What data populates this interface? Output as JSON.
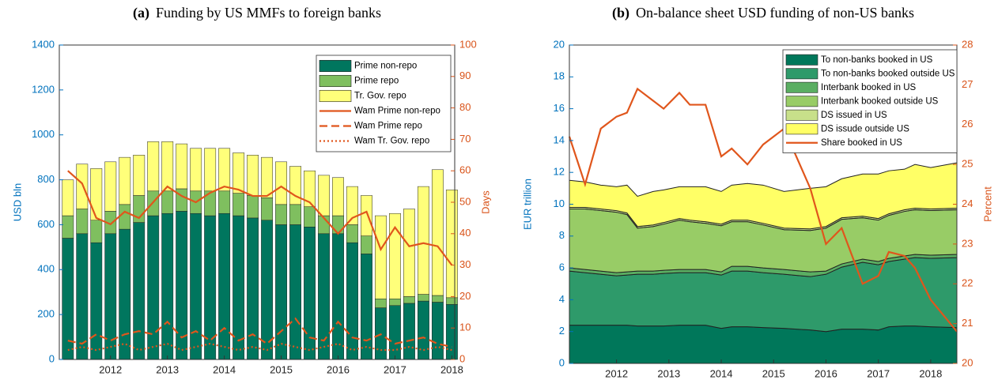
{
  "chart_data": [
    {
      "type": "bar",
      "panel": "(a)",
      "title": "Funding by US MMFs to foreign banks",
      "y_label": "USD bln",
      "y2_label": "Days",
      "x": [
        2011.25,
        2011.5,
        2011.75,
        2012.0,
        2012.25,
        2012.5,
        2012.75,
        2013.0,
        2013.25,
        2013.5,
        2013.75,
        2014.0,
        2014.25,
        2014.5,
        2014.75,
        2015.0,
        2015.25,
        2015.5,
        2015.75,
        2016.0,
        2016.25,
        2016.5,
        2016.75,
        2017.0,
        2017.25,
        2017.5,
        2017.75,
        2018.0
      ],
      "xlim": [
        2011.1,
        2018.05
      ],
      "xticks": [
        2012,
        2013,
        2014,
        2015,
        2016,
        2017,
        2018
      ],
      "ylim": [
        0,
        1400
      ],
      "yticks": [
        0,
        200,
        400,
        600,
        800,
        1000,
        1200,
        1400
      ],
      "y2lim": [
        0,
        100
      ],
      "y2ticks": [
        0,
        10,
        20,
        30,
        40,
        50,
        60,
        70,
        80,
        90,
        100
      ],
      "series": [
        {
          "name": "Prime non-repo",
          "color": "#00765e",
          "values": [
            540,
            560,
            520,
            560,
            580,
            610,
            640,
            650,
            660,
            650,
            640,
            650,
            640,
            630,
            620,
            600,
            600,
            590,
            560,
            560,
            520,
            470,
            230,
            240,
            250,
            260,
            255,
            245
          ]
        },
        {
          "name": "Prime repo",
          "color": "#7fbf5f",
          "values": [
            100,
            110,
            100,
            100,
            110,
            120,
            110,
            100,
            100,
            100,
            110,
            100,
            100,
            100,
            100,
            90,
            90,
            90,
            80,
            80,
            80,
            80,
            40,
            30,
            30,
            30,
            30,
            30
          ]
        },
        {
          "name": "Tr. Gov. repo",
          "color": "#ffff7a",
          "values": [
            160,
            200,
            230,
            220,
            210,
            180,
            220,
            220,
            200,
            190,
            190,
            190,
            180,
            180,
            180,
            190,
            170,
            160,
            180,
            170,
            170,
            180,
            370,
            380,
            390,
            480,
            560,
            480
          ]
        },
        {
          "name": "Wam Prime non-repo",
          "color": "#e0561c",
          "axis": "y2",
          "dash": "solid",
          "values": [
            60,
            56,
            45,
            43,
            47,
            45,
            50,
            55,
            52,
            50,
            53,
            55,
            54,
            52,
            52,
            55,
            52,
            50,
            45,
            40,
            45,
            47,
            35,
            42,
            36,
            37,
            36,
            30
          ]
        },
        {
          "name": "Wam Prime repo",
          "color": "#e0561c",
          "axis": "y2",
          "dash": "dashed",
          "values": [
            6,
            5,
            8,
            6,
            8,
            9,
            8,
            12,
            7,
            9,
            6,
            10,
            6,
            8,
            5,
            9,
            13,
            7,
            6,
            12,
            7,
            6,
            8,
            5,
            6,
            7,
            5,
            4
          ]
        },
        {
          "name": "Wam Tr. Gov. repo",
          "color": "#e0561c",
          "axis": "y2",
          "dash": "dotted",
          "values": [
            3,
            4,
            3,
            4,
            5,
            3,
            4,
            5,
            3,
            4,
            5,
            4,
            3,
            4,
            3,
            5,
            4,
            3,
            4,
            5,
            3,
            4,
            3,
            3,
            4,
            3,
            4,
            3
          ]
        }
      ]
    },
    {
      "type": "area",
      "panel": "(b)",
      "title": "On-balance sheet USD funding of non-US banks",
      "y_label": "EUR trillion",
      "y2_label": "Percent",
      "x": [
        2011.1,
        2011.4,
        2011.7,
        2012.0,
        2012.2,
        2012.4,
        2012.7,
        2012.9,
        2013.2,
        2013.4,
        2013.7,
        2014.0,
        2014.2,
        2014.5,
        2014.8,
        2015.2,
        2015.7,
        2016.0,
        2016.3,
        2016.7,
        2017.0,
        2017.2,
        2017.5,
        2017.7,
        2018.0,
        2018.5
      ],
      "xlim": [
        2011.1,
        2018.5
      ],
      "xticks": [
        2012,
        2013,
        2014,
        2015,
        2016,
        2017,
        2018
      ],
      "ylim": [
        0,
        20
      ],
      "yticks": [
        0,
        2,
        4,
        6,
        8,
        10,
        12,
        14,
        16,
        18,
        20
      ],
      "y2lim": [
        20,
        28
      ],
      "y2ticks": [
        20,
        21,
        22,
        23,
        24,
        25,
        26,
        27,
        28
      ],
      "series": [
        {
          "name": "To non-banks booked in US",
          "color": "#00775a",
          "values": [
            2.4,
            2.4,
            2.4,
            2.4,
            2.4,
            2.35,
            2.35,
            2.35,
            2.4,
            2.4,
            2.4,
            2.2,
            2.3,
            2.3,
            2.25,
            2.2,
            2.1,
            2.0,
            2.15,
            2.15,
            2.1,
            2.3,
            2.35,
            2.35,
            2.3,
            2.25
          ]
        },
        {
          "name": "To non-banks booked outside US",
          "color": "#2e9a6a",
          "values": [
            3.4,
            3.3,
            3.2,
            3.1,
            3.15,
            3.25,
            3.25,
            3.3,
            3.3,
            3.3,
            3.3,
            3.35,
            3.5,
            3.5,
            3.45,
            3.4,
            3.35,
            3.6,
            3.9,
            4.2,
            4.1,
            4.1,
            4.2,
            4.3,
            4.3,
            4.4
          ]
        },
        {
          "name": "Interbank booked in US",
          "color": "#5aae62",
          "values": [
            0.2,
            0.2,
            0.2,
            0.2,
            0.2,
            0.2,
            0.2,
            0.2,
            0.2,
            0.2,
            0.2,
            0.2,
            0.3,
            0.3,
            0.3,
            0.3,
            0.3,
            0.2,
            0.2,
            0.2,
            0.2,
            0.2,
            0.2,
            0.2,
            0.2,
            0.2
          ]
        },
        {
          "name": "Interbank booked outside US",
          "color": "#98cc66",
          "values": [
            3.7,
            3.8,
            3.8,
            3.8,
            3.6,
            2.7,
            2.8,
            2.9,
            3.1,
            3.0,
            2.9,
            2.9,
            2.8,
            2.8,
            2.7,
            2.5,
            2.6,
            2.7,
            2.8,
            2.6,
            2.6,
            2.7,
            2.8,
            2.8,
            2.8,
            2.8
          ]
        },
        {
          "name": "DS issued in US",
          "color": "#c8e08a",
          "values": [
            0.1,
            0.1,
            0.1,
            0.1,
            0.1,
            0.1,
            0.1,
            0.1,
            0.1,
            0.1,
            0.1,
            0.1,
            0.1,
            0.1,
            0.1,
            0.1,
            0.1,
            0.1,
            0.1,
            0.1,
            0.1,
            0.1,
            0.1,
            0.1,
            0.1,
            0.1
          ]
        },
        {
          "name": "DS issude outside US",
          "color": "#ffff66",
          "values": [
            1.7,
            1.6,
            1.5,
            1.5,
            1.75,
            1.9,
            2.1,
            2.05,
            2.0,
            2.1,
            2.2,
            2.05,
            2.2,
            2.3,
            2.4,
            2.3,
            2.55,
            2.5,
            2.45,
            2.65,
            2.8,
            2.7,
            2.55,
            2.75,
            2.6,
            2.85
          ]
        },
        {
          "name": "Share booked in US",
          "color": "#e0561c",
          "axis": "y2",
          "dash": "solid",
          "values": [
            25.7,
            24.5,
            25.9,
            26.2,
            26.3,
            26.9,
            26.6,
            26.4,
            26.8,
            26.5,
            26.5,
            25.2,
            25.4,
            25.0,
            25.5,
            25.9,
            24.4,
            23.0,
            23.4,
            22.0,
            22.2,
            22.8,
            22.7,
            22.4,
            21.6,
            20.8
          ]
        }
      ]
    }
  ]
}
